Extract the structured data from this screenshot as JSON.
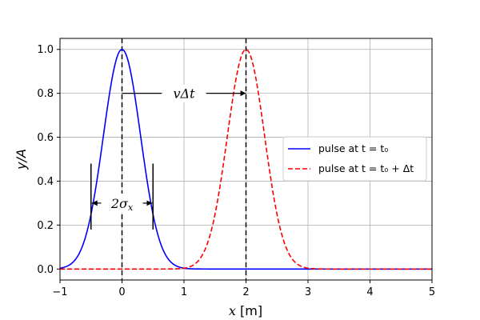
{
  "chart_data": {
    "type": "line",
    "xlabel": "x [m]",
    "ylabel": "y/A",
    "xlim": [
      -1,
      5
    ],
    "ylim": [
      -0.05,
      1.05
    ],
    "xticks": [
      -1,
      0,
      1,
      2,
      3,
      4,
      5
    ],
    "xtick_labels": [
      "−1",
      "0",
      "1",
      "2",
      "3",
      "4",
      "5"
    ],
    "yticks": [
      0.0,
      0.2,
      0.4,
      0.6,
      0.8,
      1.0
    ],
    "ytick_labels": [
      "0.0",
      "0.2",
      "0.4",
      "0.6",
      "0.8",
      "1.0"
    ],
    "grid": true,
    "legend_position": "center-right",
    "series": [
      {
        "name": "pulse at t = t₀",
        "color": "#0000ff",
        "style": "solid",
        "center": 0,
        "sigma": 0.5,
        "amplitude": 1.0
      },
      {
        "name": "pulse at t = t₀ + Δt",
        "color": "#ff0000",
        "style": "dashed",
        "center": 2,
        "sigma": 0.5,
        "amplitude": 1.0
      }
    ],
    "vlines": [
      0,
      2
    ],
    "annotations": {
      "shift_label": "vΔt",
      "shift_y": 0.8,
      "width_label": "2σ",
      "width_subscript": "x",
      "width_y": 0.3,
      "width_marker_x": [
        -0.5,
        0.5
      ],
      "width_marker_y": [
        0.18,
        0.48
      ]
    }
  }
}
